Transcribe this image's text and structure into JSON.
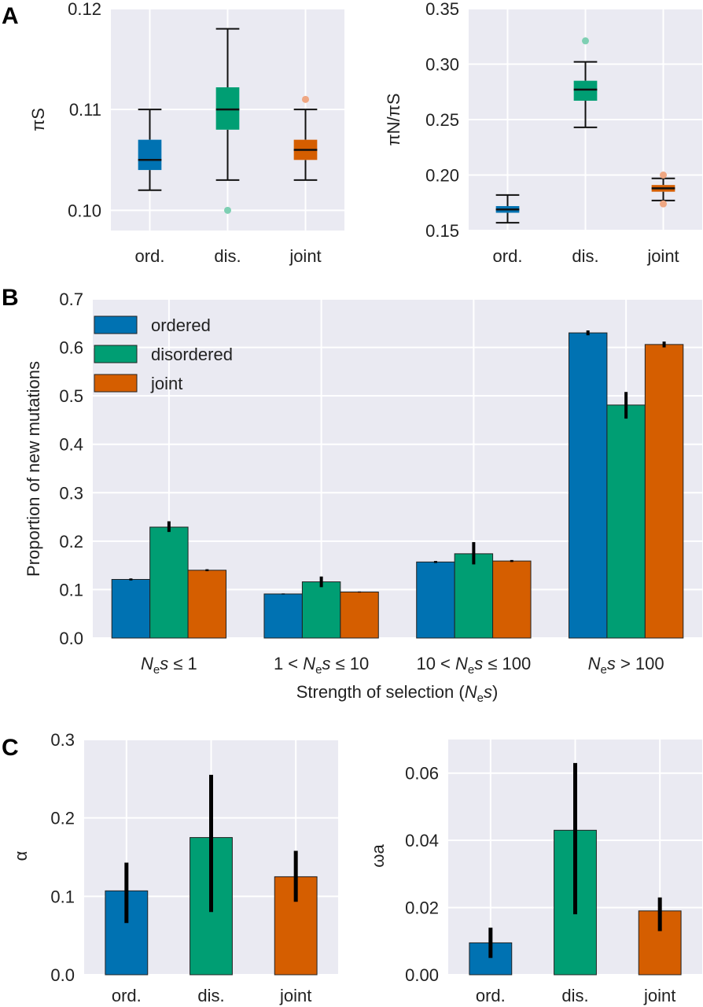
{
  "panels": {
    "a": "A",
    "b": "B",
    "c": "C"
  },
  "colors": {
    "plot_background": "#EAEAF2",
    "grid": "#FFFFFF",
    "ordered": "#0072B2",
    "disordered": "#009E73",
    "joint": "#D55E00",
    "ordered_outlier": "#0072B2",
    "disordered_outlier": "#7ECFB3",
    "joint_outlier": "#EFA783"
  },
  "chart_data": [
    {
      "id": "A_left",
      "type": "box",
      "ylabel": "πS",
      "ylim": [
        0.098,
        0.12
      ],
      "yticks": [
        0.1,
        0.11,
        0.12
      ],
      "ytick_labels": [
        "0.10",
        "0.11",
        "0.12"
      ],
      "categories": [
        "ord.",
        "dis.",
        "joint"
      ],
      "series_colors": [
        "ordered",
        "disordered",
        "joint"
      ],
      "outlier_colors": [
        "ordered_outlier",
        "disordered_outlier",
        "joint_outlier"
      ],
      "boxes": [
        {
          "whisker_low": 0.102,
          "q1": 0.104,
          "median": 0.105,
          "q3": 0.107,
          "whisker_high": 0.11,
          "outliers": []
        },
        {
          "whisker_low": 0.103,
          "q1": 0.108,
          "median": 0.11,
          "q3": 0.1122,
          "whisker_high": 0.118,
          "outliers": [
            0.1
          ]
        },
        {
          "whisker_low": 0.103,
          "q1": 0.105,
          "median": 0.106,
          "q3": 0.107,
          "whisker_high": 0.11,
          "outliers": [
            0.111
          ]
        }
      ]
    },
    {
      "id": "A_right",
      "type": "box",
      "ylabel": "πN/πS",
      "ylim": [
        0.15,
        0.35
      ],
      "yticks": [
        0.15,
        0.2,
        0.25,
        0.3,
        0.35
      ],
      "ytick_labels": [
        "0.15",
        "0.20",
        "0.25",
        "0.30",
        "0.35"
      ],
      "categories": [
        "ord.",
        "dis.",
        "joint"
      ],
      "series_colors": [
        "ordered",
        "disordered",
        "joint"
      ],
      "outlier_colors": [
        "ordered_outlier",
        "disordered_outlier",
        "joint_outlier"
      ],
      "boxes": [
        {
          "whisker_low": 0.157,
          "q1": 0.166,
          "median": 0.169,
          "q3": 0.172,
          "whisker_high": 0.182,
          "outliers": []
        },
        {
          "whisker_low": 0.243,
          "q1": 0.267,
          "median": 0.277,
          "q3": 0.285,
          "whisker_high": 0.302,
          "outliers": [
            0.321
          ]
        },
        {
          "whisker_low": 0.177,
          "q1": 0.185,
          "median": 0.188,
          "q3": 0.191,
          "whisker_high": 0.197,
          "outliers": [
            0.174,
            0.2
          ]
        }
      ]
    },
    {
      "id": "B",
      "type": "bar",
      "ylabel": "Proportion of new mutations",
      "xlabel_parts": [
        "Strength of selection (",
        "N",
        "e",
        "s",
        ")"
      ],
      "ylim": [
        0,
        0.7
      ],
      "yticks": [
        0,
        0.1,
        0.2,
        0.3,
        0.4,
        0.5,
        0.6,
        0.7
      ],
      "ytick_labels": [
        "0.0",
        "0.1",
        "0.2",
        "0.3",
        "0.4",
        "0.5",
        "0.6",
        "0.7"
      ],
      "categories": [
        [
          "",
          "N",
          "e",
          "s ≤ 1"
        ],
        [
          "1 < ",
          "N",
          "e",
          "s ≤ 10"
        ],
        [
          "10 < ",
          "N",
          "e",
          "s ≤ 100"
        ],
        [
          "",
          "N",
          "e",
          "s > 100"
        ]
      ],
      "series": [
        {
          "name": "ordered",
          "color": "ordered",
          "values": [
            0.121,
            0.091,
            0.157,
            0.63
          ],
          "err_low": [
            0.119,
            0.09,
            0.155,
            0.625
          ],
          "err_high": [
            0.123,
            0.092,
            0.159,
            0.635
          ]
        },
        {
          "name": "disordered",
          "color": "disordered",
          "values": [
            0.229,
            0.116,
            0.174,
            0.481
          ],
          "err_low": [
            0.219,
            0.105,
            0.152,
            0.453
          ],
          "err_high": [
            0.241,
            0.127,
            0.198,
            0.508
          ]
        },
        {
          "name": "joint",
          "color": "joint",
          "values": [
            0.14,
            0.095,
            0.159,
            0.606
          ],
          "err_low": [
            0.138,
            0.094,
            0.157,
            0.6
          ],
          "err_high": [
            0.142,
            0.096,
            0.161,
            0.612
          ]
        }
      ],
      "legend": [
        "ordered",
        "disordered",
        "joint"
      ],
      "legend_position": "top-left"
    },
    {
      "id": "C_left",
      "type": "bar",
      "ylabel": "α",
      "ylim": [
        0,
        0.3
      ],
      "yticks": [
        0,
        0.1,
        0.2,
        0.3
      ],
      "ytick_labels": [
        "0.0",
        "0.1",
        "0.2",
        "0.3"
      ],
      "categories": [
        "ord.",
        "dis.",
        "joint"
      ],
      "series_colors": [
        "ordered",
        "disordered",
        "joint"
      ],
      "values": [
        0.107,
        0.175,
        0.125
      ],
      "err_low": [
        0.066,
        0.08,
        0.093
      ],
      "err_high": [
        0.143,
        0.255,
        0.158
      ]
    },
    {
      "id": "C_right",
      "type": "bar",
      "ylabel": "ωa",
      "ylim": [
        0,
        0.07
      ],
      "yticks": [
        0,
        0.02,
        0.04,
        0.06
      ],
      "ytick_labels": [
        "0.00",
        "0.02",
        "0.04",
        "0.06"
      ],
      "categories": [
        "ord.",
        "dis.",
        "joint"
      ],
      "series_colors": [
        "ordered",
        "disordered",
        "joint"
      ],
      "values": [
        0.0095,
        0.043,
        0.019
      ],
      "err_low": [
        0.005,
        0.018,
        0.013
      ],
      "err_high": [
        0.014,
        0.063,
        0.023
      ]
    }
  ]
}
